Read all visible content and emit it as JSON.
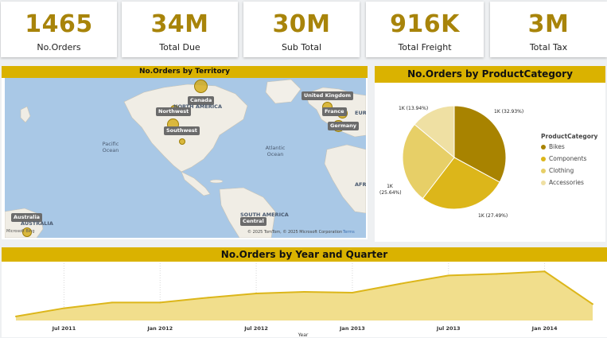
{
  "kpis": [
    {
      "value": "1465",
      "label": "No.Orders"
    },
    {
      "value": "34M",
      "label": "Total Due"
    },
    {
      "value": "30M",
      "label": "Sub Total"
    },
    {
      "value": "916K",
      "label": "Total Freight"
    },
    {
      "value": "3M",
      "label": "Total Tax"
    }
  ],
  "map": {
    "title": "No.Orders by Territory",
    "territories": [
      "Canada",
      "Northwest",
      "Southwest",
      "United Kingdom",
      "France",
      "Germany",
      "Australia",
      "Central"
    ],
    "region_labels": [
      "NORTH AMERICA",
      "EURO",
      "SOUTH AMERICA",
      "AUSTRALIA",
      "AFRI"
    ],
    "ocean_labels": [
      "Pacific Ocean",
      "Atlantic Ocean"
    ],
    "attribution": "© 2025 TomTom, © 2025 Microsoft Corporation",
    "terms": "Terms",
    "logo": "Microsoft Bing"
  },
  "pie": {
    "title": "No.Orders by ProductCategory",
    "legend_title": "ProductCategory",
    "slice_labels": [
      "1K (32.93%)",
      "1K (27.49%)",
      "1K (25.64%)",
      "1K (13.94%)"
    ]
  },
  "line": {
    "title": "No.Orders by Year and Quarter",
    "xlabel": "Year",
    "ticks": [
      "Jul 2011",
      "Jan 2012",
      "Jul 2012",
      "Jan 2013",
      "Jul 2013",
      "Jan 2014"
    ]
  },
  "chart_data": [
    {
      "type": "pie",
      "title": "No.Orders by ProductCategory",
      "legend_title": "ProductCategory",
      "legend_placement": "right",
      "categories": [
        "Bikes",
        "Components",
        "Clothing",
        "Accessories"
      ],
      "values": [
        32.93,
        27.49,
        25.64,
        13.94
      ],
      "colors": [
        "#a88300",
        "#dcb61a",
        "#e7cf67",
        "#efe0a3"
      ]
    },
    {
      "type": "area",
      "title": "No.Orders by Year and Quarter",
      "xlabel": "Year",
      "ylabel": "",
      "x": [
        "2011 Q2",
        "2011 Q3",
        "2011 Q4",
        "2012 Q1",
        "2012 Q2",
        "2012 Q3",
        "2012 Q4",
        "2013 Q1",
        "2013 Q2",
        "2013 Q3",
        "2013 Q4",
        "2014 Q1",
        "2014 Q2"
      ],
      "series": [
        {
          "values": [
            5,
            15,
            22,
            22,
            28,
            33,
            35,
            34,
            45,
            55,
            57,
            60,
            20
          ]
        }
      ],
      "ylim": [
        0,
        70
      ],
      "grid": false,
      "color": "#dcb61a"
    }
  ]
}
